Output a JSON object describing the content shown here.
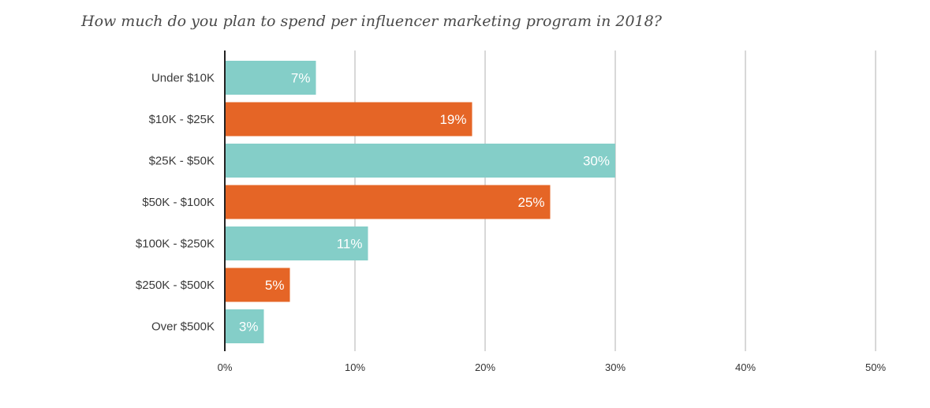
{
  "chart_data": {
    "type": "bar",
    "orientation": "horizontal",
    "title": "How much do you plan to spend per influencer marketing program in 2018?",
    "categories": [
      "Under $10K",
      "$10K - $25K",
      "$25K - $50K",
      "$50K - $100K",
      "$100K - $250K",
      "$250K - $500K",
      "Over $500K"
    ],
    "values": [
      7,
      19,
      30,
      25,
      11,
      5,
      3
    ],
    "value_labels": [
      "7%",
      "19%",
      "30%",
      "25%",
      "11%",
      "5%",
      "3%"
    ],
    "xlim": [
      0,
      50
    ],
    "xticks": [
      0,
      10,
      20,
      30,
      40,
      50
    ],
    "xtick_labels": [
      "0%",
      "10%",
      "20%",
      "30%",
      "40%",
      "50%"
    ],
    "grid": true,
    "colors": [
      "#84cec8",
      "#e56526",
      "#84cec8",
      "#e56526",
      "#84cec8",
      "#e56526",
      "#84cec8"
    ],
    "gridline_color": "#bdbdbd",
    "axis_color": "#222222"
  }
}
